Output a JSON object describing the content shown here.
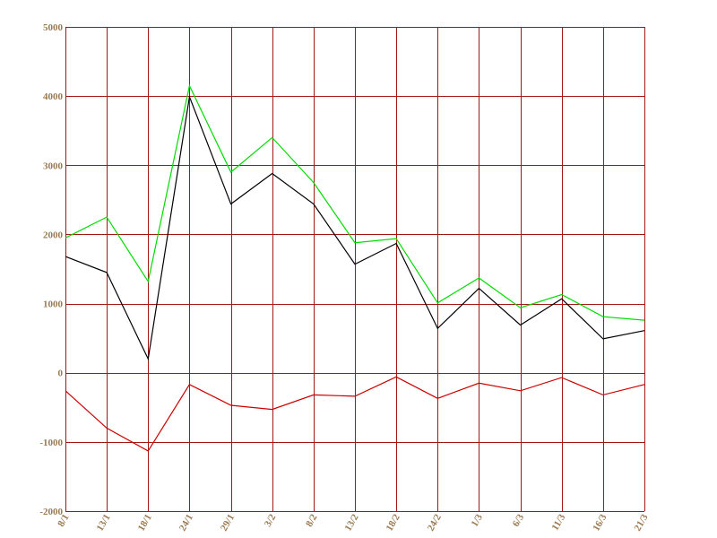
{
  "chart_data": {
    "type": "line",
    "x": [
      "8/1",
      "13/1",
      "18/1",
      "24/1",
      "29/1",
      "3/2",
      "8/2",
      "13/2",
      "18/2",
      "24/2",
      "1/3",
      "6/3",
      "11/3",
      "16/3",
      "21/3"
    ],
    "ylim": [
      -2000,
      5000
    ],
    "yticks": [
      5000,
      4000,
      3000,
      2000,
      1000,
      0,
      -1000,
      -2000
    ],
    "grid": true,
    "grid_color": "#a01818",
    "tick_label_color": "#9a7a52",
    "series": [
      {
        "color": "#00dd00",
        "values": [
          1950,
          2250,
          1320,
          4150,
          2900,
          3400,
          2750,
          1880,
          1940,
          1010,
          1370,
          940,
          1130,
          810,
          760
        ]
      },
      {
        "color": "#000000",
        "values": [
          1680,
          1450,
          200,
          3990,
          2440,
          2880,
          2440,
          1570,
          1870,
          640,
          1220,
          690,
          1070,
          490,
          610
        ]
      },
      {
        "color": "#cc0000",
        "values": [
          -260,
          -800,
          -1130,
          -170,
          -470,
          -530,
          -320,
          -340,
          -60,
          -370,
          -150,
          -260,
          -70,
          -320,
          -170
        ]
      }
    ]
  }
}
